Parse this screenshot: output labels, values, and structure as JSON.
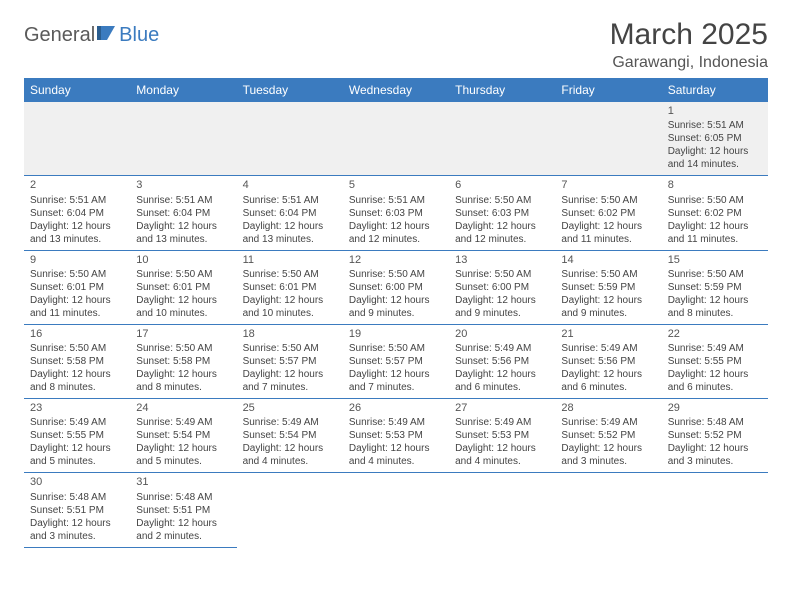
{
  "brand": {
    "part1": "General",
    "part2": "Blue"
  },
  "title": "March 2025",
  "location": "Garawangi, Indonesia",
  "colors": {
    "header_bg": "#3b7bbf",
    "header_text": "#ffffff",
    "body_text": "#444444",
    "row1_bg": "#f0f0f0",
    "border": "#3b7bbf"
  },
  "days_of_week": [
    "Sunday",
    "Monday",
    "Tuesday",
    "Wednesday",
    "Thursday",
    "Friday",
    "Saturday"
  ],
  "weeks": [
    [
      null,
      null,
      null,
      null,
      null,
      null,
      {
        "n": "1",
        "sr": "Sunrise: 5:51 AM",
        "ss": "Sunset: 6:05 PM",
        "dl": "Daylight: 12 hours and 14 minutes."
      }
    ],
    [
      {
        "n": "2",
        "sr": "Sunrise: 5:51 AM",
        "ss": "Sunset: 6:04 PM",
        "dl": "Daylight: 12 hours and 13 minutes."
      },
      {
        "n": "3",
        "sr": "Sunrise: 5:51 AM",
        "ss": "Sunset: 6:04 PM",
        "dl": "Daylight: 12 hours and 13 minutes."
      },
      {
        "n": "4",
        "sr": "Sunrise: 5:51 AM",
        "ss": "Sunset: 6:04 PM",
        "dl": "Daylight: 12 hours and 13 minutes."
      },
      {
        "n": "5",
        "sr": "Sunrise: 5:51 AM",
        "ss": "Sunset: 6:03 PM",
        "dl": "Daylight: 12 hours and 12 minutes."
      },
      {
        "n": "6",
        "sr": "Sunrise: 5:50 AM",
        "ss": "Sunset: 6:03 PM",
        "dl": "Daylight: 12 hours and 12 minutes."
      },
      {
        "n": "7",
        "sr": "Sunrise: 5:50 AM",
        "ss": "Sunset: 6:02 PM",
        "dl": "Daylight: 12 hours and 11 minutes."
      },
      {
        "n": "8",
        "sr": "Sunrise: 5:50 AM",
        "ss": "Sunset: 6:02 PM",
        "dl": "Daylight: 12 hours and 11 minutes."
      }
    ],
    [
      {
        "n": "9",
        "sr": "Sunrise: 5:50 AM",
        "ss": "Sunset: 6:01 PM",
        "dl": "Daylight: 12 hours and 11 minutes."
      },
      {
        "n": "10",
        "sr": "Sunrise: 5:50 AM",
        "ss": "Sunset: 6:01 PM",
        "dl": "Daylight: 12 hours and 10 minutes."
      },
      {
        "n": "11",
        "sr": "Sunrise: 5:50 AM",
        "ss": "Sunset: 6:01 PM",
        "dl": "Daylight: 12 hours and 10 minutes."
      },
      {
        "n": "12",
        "sr": "Sunrise: 5:50 AM",
        "ss": "Sunset: 6:00 PM",
        "dl": "Daylight: 12 hours and 9 minutes."
      },
      {
        "n": "13",
        "sr": "Sunrise: 5:50 AM",
        "ss": "Sunset: 6:00 PM",
        "dl": "Daylight: 12 hours and 9 minutes."
      },
      {
        "n": "14",
        "sr": "Sunrise: 5:50 AM",
        "ss": "Sunset: 5:59 PM",
        "dl": "Daylight: 12 hours and 9 minutes."
      },
      {
        "n": "15",
        "sr": "Sunrise: 5:50 AM",
        "ss": "Sunset: 5:59 PM",
        "dl": "Daylight: 12 hours and 8 minutes."
      }
    ],
    [
      {
        "n": "16",
        "sr": "Sunrise: 5:50 AM",
        "ss": "Sunset: 5:58 PM",
        "dl": "Daylight: 12 hours and 8 minutes."
      },
      {
        "n": "17",
        "sr": "Sunrise: 5:50 AM",
        "ss": "Sunset: 5:58 PM",
        "dl": "Daylight: 12 hours and 8 minutes."
      },
      {
        "n": "18",
        "sr": "Sunrise: 5:50 AM",
        "ss": "Sunset: 5:57 PM",
        "dl": "Daylight: 12 hours and 7 minutes."
      },
      {
        "n": "19",
        "sr": "Sunrise: 5:50 AM",
        "ss": "Sunset: 5:57 PM",
        "dl": "Daylight: 12 hours and 7 minutes."
      },
      {
        "n": "20",
        "sr": "Sunrise: 5:49 AM",
        "ss": "Sunset: 5:56 PM",
        "dl": "Daylight: 12 hours and 6 minutes."
      },
      {
        "n": "21",
        "sr": "Sunrise: 5:49 AM",
        "ss": "Sunset: 5:56 PM",
        "dl": "Daylight: 12 hours and 6 minutes."
      },
      {
        "n": "22",
        "sr": "Sunrise: 5:49 AM",
        "ss": "Sunset: 5:55 PM",
        "dl": "Daylight: 12 hours and 6 minutes."
      }
    ],
    [
      {
        "n": "23",
        "sr": "Sunrise: 5:49 AM",
        "ss": "Sunset: 5:55 PM",
        "dl": "Daylight: 12 hours and 5 minutes."
      },
      {
        "n": "24",
        "sr": "Sunrise: 5:49 AM",
        "ss": "Sunset: 5:54 PM",
        "dl": "Daylight: 12 hours and 5 minutes."
      },
      {
        "n": "25",
        "sr": "Sunrise: 5:49 AM",
        "ss": "Sunset: 5:54 PM",
        "dl": "Daylight: 12 hours and 4 minutes."
      },
      {
        "n": "26",
        "sr": "Sunrise: 5:49 AM",
        "ss": "Sunset: 5:53 PM",
        "dl": "Daylight: 12 hours and 4 minutes."
      },
      {
        "n": "27",
        "sr": "Sunrise: 5:49 AM",
        "ss": "Sunset: 5:53 PM",
        "dl": "Daylight: 12 hours and 4 minutes."
      },
      {
        "n": "28",
        "sr": "Sunrise: 5:49 AM",
        "ss": "Sunset: 5:52 PM",
        "dl": "Daylight: 12 hours and 3 minutes."
      },
      {
        "n": "29",
        "sr": "Sunrise: 5:48 AM",
        "ss": "Sunset: 5:52 PM",
        "dl": "Daylight: 12 hours and 3 minutes."
      }
    ],
    [
      {
        "n": "30",
        "sr": "Sunrise: 5:48 AM",
        "ss": "Sunset: 5:51 PM",
        "dl": "Daylight: 12 hours and 3 minutes."
      },
      {
        "n": "31",
        "sr": "Sunrise: 5:48 AM",
        "ss": "Sunset: 5:51 PM",
        "dl": "Daylight: 12 hours and 2 minutes."
      },
      null,
      null,
      null,
      null,
      null
    ]
  ]
}
